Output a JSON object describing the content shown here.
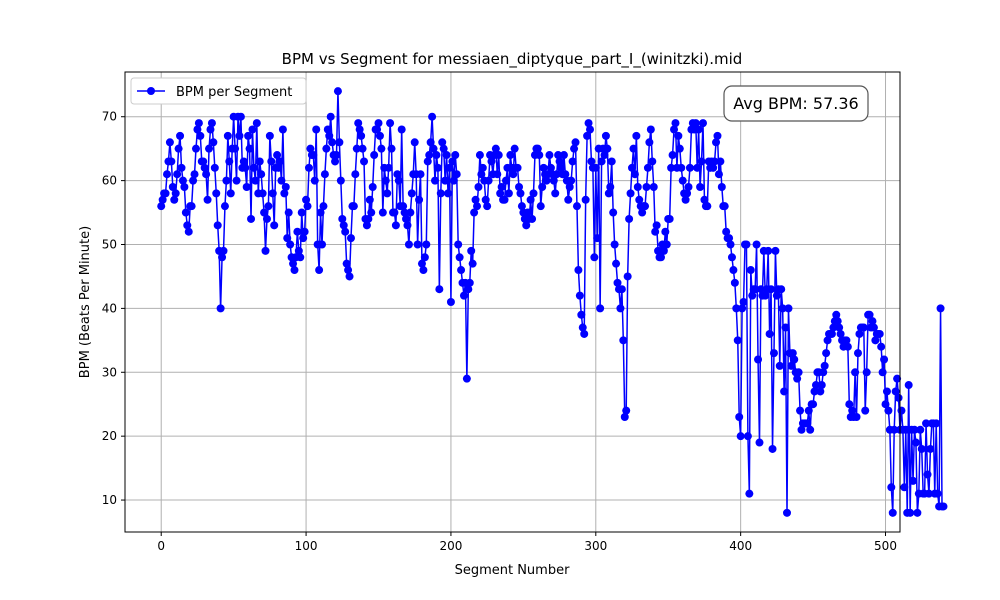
{
  "chart_data": {
    "type": "line",
    "title": "BPM vs Segment for messiaen_diptyque_part_I_(winitzki).mid",
    "xlabel": "Segment Number",
    "ylabel": "BPM (Beats Per Minute)",
    "xlim": [
      -25,
      510
    ],
    "ylim": [
      5,
      77
    ],
    "xticks": [
      0,
      100,
      200,
      300,
      400,
      500
    ],
    "yticks": [
      10,
      20,
      30,
      40,
      50,
      60,
      70
    ],
    "grid": true,
    "legend": "top-left",
    "annotation": "Avg BPM: 57.36",
    "series": [
      {
        "name": "BPM per Segment",
        "color": "#0000ff",
        "marker": "circle",
        "values": [
          56,
          57,
          58,
          58,
          61,
          63,
          66,
          63,
          59,
          57,
          58,
          61,
          65,
          67,
          62,
          60,
          59,
          55,
          53,
          52,
          56,
          56,
          60,
          61,
          65,
          68,
          69,
          67,
          63,
          63,
          62,
          61,
          57,
          65,
          68,
          69,
          66,
          62,
          58,
          53,
          49,
          40,
          48,
          49,
          56,
          60,
          67,
          63,
          58,
          65,
          70,
          65,
          60,
          70,
          67,
          70,
          62,
          63,
          62,
          59,
          67,
          65,
          54,
          68,
          62,
          60,
          69,
          58,
          63,
          61,
          58,
          55,
          49,
          54,
          56,
          67,
          63,
          58,
          53,
          62,
          64,
          62,
          63,
          60,
          68,
          58,
          59,
          51,
          55,
          50,
          48,
          47,
          46,
          48,
          52,
          49,
          48,
          55,
          51,
          52,
          57,
          56,
          62,
          65,
          64,
          64,
          60,
          68,
          50,
          46,
          55,
          50,
          56,
          61,
          65,
          68,
          67,
          70,
          66,
          64,
          63,
          64,
          74,
          66,
          60,
          54,
          53,
          52,
          47,
          46,
          45,
          51,
          56,
          56,
          61,
          65,
          69,
          68,
          67,
          65,
          63,
          54,
          53,
          54,
          57,
          55,
          59,
          64,
          68,
          68,
          69,
          67,
          65,
          55,
          62,
          60,
          58,
          62,
          69,
          65,
          55,
          55,
          53,
          61,
          60,
          56,
          68,
          56,
          55,
          54,
          53,
          50,
          55,
          58,
          61,
          66,
          61,
          50,
          57,
          61,
          47,
          46,
          48,
          50,
          63,
          64,
          66,
          70,
          65,
          60,
          64,
          62,
          43,
          58,
          66,
          65,
          60,
          64,
          58,
          62,
          41,
          63,
          60,
          64,
          61,
          50,
          48,
          46,
          44,
          42,
          44,
          29,
          43,
          44,
          49,
          47,
          55,
          57,
          56,
          59,
          64,
          61,
          62,
          60,
          57,
          56,
          60,
          64,
          63,
          61,
          64,
          65,
          61,
          64,
          58,
          59,
          57,
          57,
          60,
          62,
          58,
          64,
          62,
          61,
          65,
          62,
          62,
          59,
          58,
          56,
          55,
          54,
          53,
          55,
          54,
          57,
          54,
          58,
          64,
          65,
          65,
          64,
          56,
          59,
          62,
          61,
          60,
          61,
          64,
          62,
          61,
          60,
          58,
          61,
          64,
          63,
          62,
          61,
          64,
          61,
          60,
          57,
          59,
          60,
          63,
          65,
          66,
          56,
          46,
          42,
          39,
          37,
          36,
          57,
          67,
          69,
          68,
          63,
          62,
          48,
          62,
          51,
          65,
          40,
          63,
          65,
          64,
          67,
          65,
          58,
          59,
          63,
          55,
          50,
          47,
          44,
          43,
          40,
          43,
          35,
          23,
          24,
          45,
          54,
          58,
          62,
          65,
          61,
          67,
          59,
          57,
          56,
          55,
          56,
          56,
          59,
          62,
          66,
          68,
          63,
          59,
          52,
          53,
          49,
          48,
          48,
          50,
          49,
          52,
          50,
          54,
          54,
          62,
          64,
          68,
          69,
          62,
          67,
          65,
          62,
          60,
          58,
          57,
          58,
          59,
          62,
          68,
          69,
          68,
          69,
          62,
          68,
          59,
          63,
          69,
          57,
          56,
          56,
          63,
          62,
          63,
          62,
          63,
          66,
          67,
          61,
          63,
          59,
          56,
          56,
          52,
          51,
          51,
          50,
          48,
          46,
          44,
          40,
          35,
          23,
          20,
          40,
          41,
          50,
          50,
          20,
          11,
          46,
          42,
          43,
          43,
          50,
          32,
          19,
          43,
          42,
          49,
          42,
          43,
          49,
          36,
          43,
          18,
          33,
          49,
          42,
          43,
          31,
          43,
          40,
          27,
          37,
          8,
          40,
          33,
          31,
          33,
          32,
          30,
          29,
          30,
          24,
          21,
          22,
          22,
          22,
          22,
          24,
          21,
          25,
          25,
          27,
          28,
          30,
          30,
          27,
          28,
          30,
          31,
          33,
          35,
          36,
          36,
          36,
          37,
          38,
          39,
          38,
          37,
          36,
          35,
          34,
          35,
          35,
          34,
          25,
          23,
          24,
          23,
          30,
          23,
          33,
          36,
          37,
          37,
          37,
          24,
          30,
          39,
          39,
          37,
          38,
          37,
          35,
          36,
          36,
          36,
          34,
          30,
          32,
          25,
          27,
          24,
          21,
          12,
          8,
          21,
          27,
          29,
          26,
          21,
          24,
          21,
          12,
          21,
          8,
          28,
          8,
          21,
          13,
          21,
          19,
          8,
          11,
          21,
          18,
          11,
          11,
          22,
          14,
          11,
          18,
          22,
          22,
          11,
          22,
          11,
          9,
          40,
          9,
          9
        ]
      }
    ]
  }
}
